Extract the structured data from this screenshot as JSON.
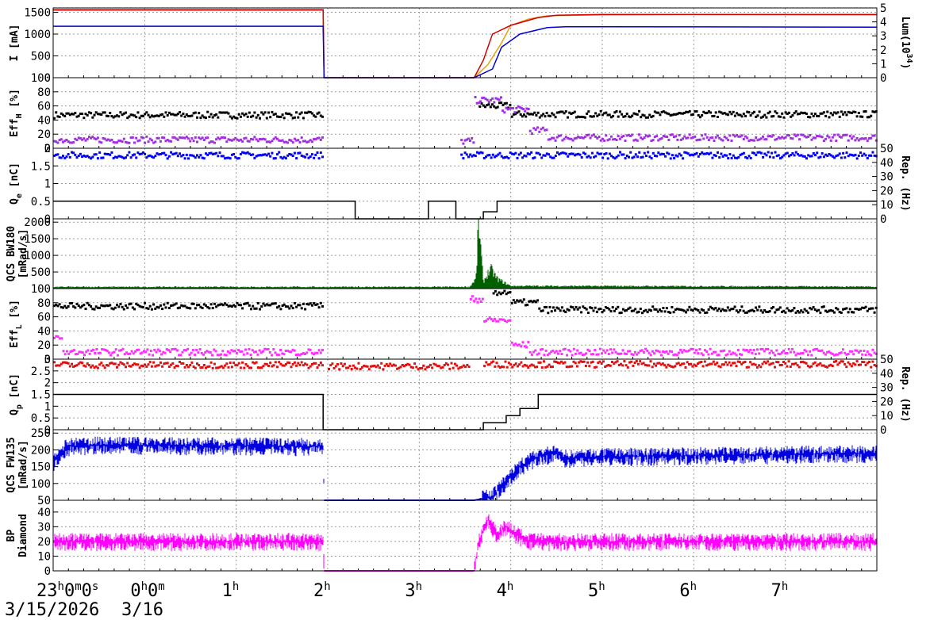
{
  "chart_data": {
    "type": "line",
    "x_axis": {
      "range": [
        "23:00",
        "08:00"
      ],
      "ticks": [
        {
          "hour": 23,
          "main": "23",
          "sup": "h",
          "main2": "0",
          "sup2": "m",
          "main3": "0",
          "sup3": "s"
        },
        {
          "hour": 24,
          "main": "0",
          "sup": "h",
          "main2": "0",
          "sup2": "m",
          "main3": "",
          "sup3": ""
        },
        {
          "hour": 25,
          "main": "1",
          "sup": "h",
          "main2": "",
          "sup2": "",
          "main3": "",
          "sup3": ""
        },
        {
          "hour": 26,
          "main": "2",
          "sup": "h",
          "main2": "",
          "sup2": "",
          "main3": "",
          "sup3": ""
        },
        {
          "hour": 27,
          "main": "3",
          "sup": "h",
          "main2": "",
          "sup2": "",
          "main3": "",
          "sup3": ""
        },
        {
          "hour": 28,
          "main": "4",
          "sup": "h",
          "main2": "",
          "sup2": "",
          "main3": "",
          "sup3": ""
        },
        {
          "hour": 29,
          "main": "5",
          "sup": "h",
          "main2": "",
          "sup2": "",
          "main3": "",
          "sup3": ""
        },
        {
          "hour": 30,
          "main": "6",
          "sup": "h",
          "main2": "",
          "sup2": "",
          "main3": "",
          "sup3": ""
        },
        {
          "hour": 31,
          "main": "7",
          "sup": "h",
          "main2": "",
          "sup2": "",
          "main3": "",
          "sup3": ""
        }
      ],
      "dates": [
        "3/15/2026",
        "3/16"
      ]
    },
    "panels": [
      {
        "id": "current",
        "ylabel_lines": [
          "I [mA]"
        ],
        "ylim": [
          0,
          1600
        ],
        "yticks": [
          0,
          500,
          1000,
          1500
        ],
        "y2label_lines": [
          "Lum(10",
          "34",
          ")"
        ],
        "y2lim": [
          0,
          5
        ],
        "y2ticks": [
          0,
          1,
          2,
          3,
          4,
          5
        ],
        "series": [
          {
            "type": "line",
            "color": "#e8a010",
            "points": [
              [
                23,
                1540
              ],
              [
                24,
                1545
              ],
              [
                25,
                1540
              ],
              [
                25.95,
                1545
              ],
              [
                25.96,
                0
              ],
              [
                27.6,
                0
              ],
              [
                27.75,
                300
              ],
              [
                27.9,
                800
              ],
              [
                28.0,
                1200
              ],
              [
                28.2,
                1350
              ],
              [
                28.4,
                1420
              ],
              [
                29,
                1440
              ],
              [
                30,
                1450
              ],
              [
                31,
                1445
              ],
              [
                32,
                1440
              ]
            ]
          },
          {
            "type": "line",
            "color": "#d00000",
            "points": [
              [
                23,
                1560
              ],
              [
                25.95,
                1560
              ],
              [
                25.96,
                0
              ],
              [
                27.6,
                0
              ],
              [
                27.7,
                400
              ],
              [
                27.8,
                1000
              ],
              [
                28.0,
                1200
              ],
              [
                28.3,
                1380
              ],
              [
                28.5,
                1430
              ],
              [
                29,
                1450
              ],
              [
                32,
                1450
              ]
            ]
          },
          {
            "type": "line",
            "color": "#0000d0",
            "points": [
              [
                23,
                1180
              ],
              [
                25.95,
                1180
              ],
              [
                25.96,
                0
              ],
              [
                27.6,
                0
              ],
              [
                27.8,
                200
              ],
              [
                27.9,
                700
              ],
              [
                28.1,
                1000
              ],
              [
                28.4,
                1150
              ],
              [
                28.6,
                1170
              ],
              [
                32,
                1160
              ]
            ]
          }
        ]
      },
      {
        "id": "eff-h",
        "ylabel_lines": [
          "Eff",
          "H",
          " [%]"
        ],
        "ylim": [
          0,
          100
        ],
        "yticks": [
          0,
          20,
          40,
          60,
          80,
          100
        ],
        "series": [
          {
            "type": "scatter",
            "color": "#000000",
            "segments": [
              [
                23,
                25.95,
                47
              ],
              [
                27.65,
                28.0,
                60
              ],
              [
                28.0,
                32,
                48
              ]
            ]
          },
          {
            "type": "scatter",
            "color": "#a030e0",
            "segments": [
              [
                23,
                25.95,
                12
              ],
              [
                27.45,
                27.6,
                10
              ],
              [
                27.6,
                27.9,
                68
              ],
              [
                27.9,
                28.2,
                55
              ],
              [
                28.2,
                28.4,
                25
              ],
              [
                28.4,
                32,
                15
              ]
            ]
          }
        ]
      },
      {
        "id": "qe",
        "ylabel_lines": [
          "Q",
          "e",
          " [nC]"
        ],
        "ylim": [
          0,
          2
        ],
        "yticks": [
          0,
          0.5,
          1,
          1.5,
          2
        ],
        "y2label_lines": [
          "Rep. (Hz)"
        ],
        "y2lim": [
          0,
          50
        ],
        "y2ticks": [
          0,
          10,
          20,
          30,
          40,
          50
        ],
        "series": [
          {
            "type": "scatter",
            "color": "#0000ff",
            "segments": [
              [
                23,
                25.95,
                1.8
              ],
              [
                27.45,
                32,
                1.8
              ]
            ]
          },
          {
            "type": "step",
            "color": "#000000",
            "points": [
              [
                23,
                12.5
              ],
              [
                26.3,
                12.5
              ],
              [
                26.3,
                0
              ],
              [
                27.1,
                0
              ],
              [
                27.1,
                12.5
              ],
              [
                27.4,
                12.5
              ],
              [
                27.4,
                0
              ],
              [
                27.7,
                0
              ],
              [
                27.7,
                5
              ],
              [
                27.85,
                5
              ],
              [
                27.85,
                12.5
              ],
              [
                32,
                12.5
              ]
            ],
            "axis": "y2"
          }
        ]
      },
      {
        "id": "qcs-bw180",
        "ylabel_lines": [
          "QCS BW180",
          "[mRad/s]"
        ],
        "ylim": [
          0,
          2100
        ],
        "yticks": [
          500,
          1000,
          1500,
          2000
        ],
        "series": [
          {
            "type": "area",
            "color": "#006000",
            "points": [
              [
                23,
                50
              ],
              [
                27.55,
                50
              ],
              [
                27.62,
                300
              ],
              [
                27.65,
                2000
              ],
              [
                27.7,
                200
              ],
              [
                27.78,
                600
              ],
              [
                27.85,
                300
              ],
              [
                27.95,
                150
              ],
              [
                28,
                80
              ],
              [
                32,
                60
              ]
            ]
          }
        ]
      },
      {
        "id": "eff-l",
        "ylabel_lines": [
          "Eff",
          "L",
          " [%]"
        ],
        "ylim": [
          0,
          100
        ],
        "yticks": [
          0,
          20,
          40,
          60,
          80,
          100
        ],
        "series": [
          {
            "type": "scatter",
            "color": "#000000",
            "segments": [
              [
                23,
                25.95,
                75
              ],
              [
                27.8,
                28.0,
                95
              ],
              [
                28.0,
                28.3,
                80
              ],
              [
                28.3,
                32,
                70
              ]
            ]
          },
          {
            "type": "scatter",
            "color": "#ff30ff",
            "segments": [
              [
                23,
                23.1,
                30
              ],
              [
                23.1,
                25.95,
                10
              ],
              [
                27.55,
                27.7,
                85
              ],
              [
                27.7,
                28.0,
                55
              ],
              [
                28.0,
                28.2,
                20
              ],
              [
                28.2,
                32,
                10
              ]
            ]
          }
        ]
      },
      {
        "id": "qp",
        "ylabel_lines": [
          "Q",
          "p",
          " [nC]"
        ],
        "ylim": [
          0,
          3
        ],
        "yticks": [
          0,
          0.5,
          1,
          1.5,
          2,
          2.5,
          3
        ],
        "y2label_lines": [
          "Rep. (Hz)"
        ],
        "y2lim": [
          0,
          50
        ],
        "y2ticks": [
          0,
          10,
          20,
          30,
          40,
          50
        ],
        "series": [
          {
            "type": "scatter",
            "color": "#e01010",
            "segments": [
              [
                23,
                25.95,
                2.75
              ],
              [
                26.0,
                27.55,
                2.7
              ],
              [
                27.7,
                32,
                2.78
              ]
            ]
          },
          {
            "type": "step",
            "color": "#000000",
            "points": [
              [
                23,
                25
              ],
              [
                25.95,
                25
              ],
              [
                25.95,
                0
              ],
              [
                27.7,
                0
              ],
              [
                27.7,
                5
              ],
              [
                27.95,
                5
              ],
              [
                27.95,
                10
              ],
              [
                28.1,
                10
              ],
              [
                28.1,
                15
              ],
              [
                28.3,
                15
              ],
              [
                28.3,
                25
              ],
              [
                32,
                25
              ]
            ],
            "axis": "y2"
          }
        ]
      },
      {
        "id": "qcs-fw135",
        "ylabel_lines": [
          "QCS FW135",
          "[mRad/s]"
        ],
        "ylim": [
          50,
          260
        ],
        "yticks": [
          50,
          100,
          150,
          200,
          250
        ],
        "series": [
          {
            "type": "noise",
            "color": "#0000e0",
            "points": [
              [
                23,
                160
              ],
              [
                23.15,
                210
              ],
              [
                23.5,
                215
              ],
              [
                25.95,
                210
              ],
              [
                25.96,
                50
              ],
              [
                27.6,
                50
              ],
              [
                27.8,
                60
              ],
              [
                28.0,
                120
              ],
              [
                28.1,
                150
              ],
              [
                28.3,
                180
              ],
              [
                28.5,
                190
              ],
              [
                28.6,
                175
              ],
              [
                29.0,
                180
              ],
              [
                32,
                190
              ]
            ]
          }
        ]
      },
      {
        "id": "bp-diamond",
        "ylabel_lines": [
          "BP",
          "Diamond"
        ],
        "ylim": [
          0,
          48
        ],
        "yticks": [
          0,
          10,
          20,
          30,
          40
        ],
        "series": [
          {
            "type": "noise",
            "color": "#ff00ff",
            "points": [
              [
                23,
                20
              ],
              [
                25.95,
                20
              ],
              [
                25.96,
                0
              ],
              [
                27.6,
                0
              ],
              [
                27.65,
                20
              ],
              [
                27.75,
                35
              ],
              [
                27.85,
                25
              ],
              [
                27.95,
                30
              ],
              [
                28.05,
                25
              ],
              [
                28.2,
                20
              ],
              [
                32,
                20
              ]
            ]
          }
        ]
      }
    ]
  }
}
